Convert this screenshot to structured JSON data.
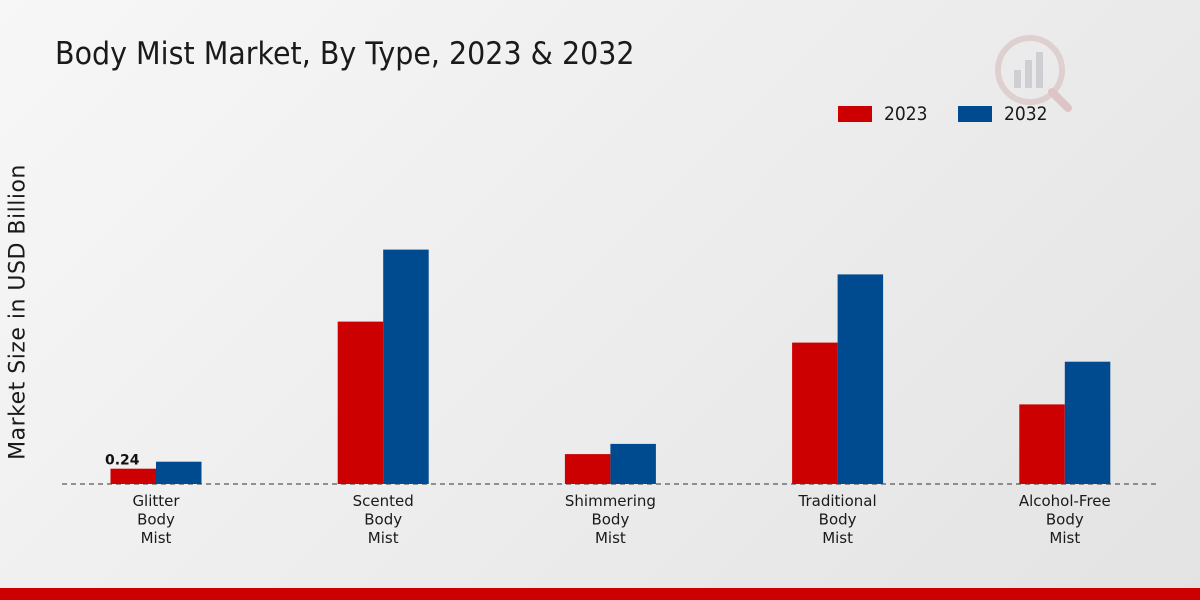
{
  "title": "Body Mist Market, By Type, 2023 & 2032",
  "chart_data": {
    "type": "bar",
    "title": "Body Mist Market, By Type, 2023 & 2032",
    "xlabel": "",
    "ylabel": "Market Size in USD Billion",
    "categories": [
      [
        "Glitter",
        "Body",
        "Mist"
      ],
      [
        "Scented",
        "Body",
        "Mist"
      ],
      [
        "Shimmering",
        "Body",
        "Mist"
      ],
      [
        "Traditional",
        "Body",
        "Mist"
      ],
      [
        "Alcohol-Free",
        "Body",
        "Mist"
      ]
    ],
    "series": [
      {
        "name": "2023",
        "color": "#cc0000",
        "values": [
          0.24,
          2.55,
          0.47,
          2.22,
          1.25
        ]
      },
      {
        "name": "2032",
        "color": "#004a8f",
        "values": [
          0.35,
          3.68,
          0.63,
          3.29,
          1.92
        ]
      }
    ],
    "data_labels": [
      {
        "series": 0,
        "index": 0,
        "text": "0.24"
      }
    ],
    "ylim": [
      0,
      5.4
    ],
    "grid": false,
    "legend_position": "top-right"
  }
}
